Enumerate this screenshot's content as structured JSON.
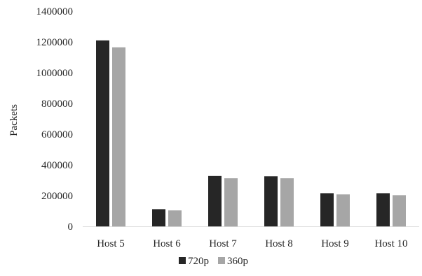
{
  "chart_data": {
    "type": "bar",
    "title": "",
    "xlabel": "",
    "ylabel": "Packets",
    "ylim": [
      0,
      1400000
    ],
    "yticks": [
      0,
      200000,
      400000,
      600000,
      800000,
      1000000,
      1200000,
      1400000
    ],
    "ytick_labels": [
      "0",
      "200000",
      "400000",
      "600000",
      "800000",
      "1000000",
      "1200000",
      "1400000"
    ],
    "categories": [
      "Host 5",
      "Host 6",
      "Host 7",
      "Host 8",
      "Host 9",
      "Host 10"
    ],
    "series": [
      {
        "name": "720p",
        "color": "#262626",
        "values": [
          1210000,
          112000,
          328000,
          326000,
          216000,
          216000
        ]
      },
      {
        "name": "360p",
        "color": "#a6a6a6",
        "values": [
          1165000,
          104000,
          313000,
          313000,
          208000,
          203000
        ]
      }
    ],
    "grid": false,
    "legend_position": "bottom-center"
  }
}
